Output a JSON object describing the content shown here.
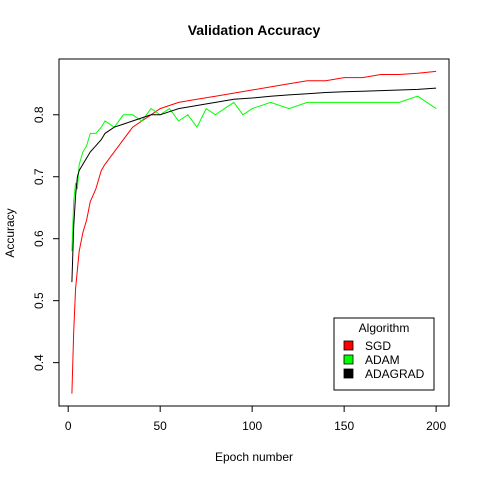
{
  "chart_data": {
    "type": "line",
    "title": "Validation Accuracy",
    "xlabel": "Epoch number",
    "ylabel": "Accuracy",
    "xlim": [
      -5,
      207
    ],
    "ylim": [
      0.33,
      0.89
    ],
    "xticks": [
      0,
      50,
      100,
      150,
      200
    ],
    "yticks": [
      0.4,
      0.5,
      0.6,
      0.7,
      0.8
    ],
    "legend": {
      "title": "Algorithm",
      "position": "bottom-right"
    },
    "series": [
      {
        "name": "SGD",
        "color": "#ff0000",
        "x": [
          2,
          3,
          4,
          5,
          6,
          8,
          10,
          12,
          15,
          18,
          20,
          25,
          30,
          35,
          40,
          45,
          50,
          55,
          60,
          70,
          80,
          90,
          100,
          110,
          120,
          130,
          140,
          150,
          160,
          170,
          180,
          190,
          200
        ],
        "y": [
          0.35,
          0.45,
          0.52,
          0.55,
          0.58,
          0.61,
          0.63,
          0.66,
          0.68,
          0.71,
          0.72,
          0.74,
          0.76,
          0.78,
          0.79,
          0.8,
          0.81,
          0.815,
          0.82,
          0.825,
          0.83,
          0.835,
          0.84,
          0.845,
          0.85,
          0.855,
          0.855,
          0.86,
          0.86,
          0.865,
          0.865,
          0.867,
          0.87
        ]
      },
      {
        "name": "ADAM",
        "color": "#00ff00",
        "x": [
          2,
          3,
          4,
          5,
          6,
          7,
          8,
          10,
          12,
          15,
          18,
          20,
          25,
          30,
          35,
          40,
          45,
          50,
          55,
          60,
          65,
          70,
          75,
          80,
          85,
          90,
          95,
          100,
          110,
          120,
          130,
          140,
          150,
          160,
          170,
          180,
          190,
          200
        ],
        "y": [
          0.58,
          0.66,
          0.69,
          0.68,
          0.72,
          0.73,
          0.74,
          0.75,
          0.77,
          0.77,
          0.78,
          0.79,
          0.78,
          0.8,
          0.8,
          0.79,
          0.81,
          0.8,
          0.81,
          0.79,
          0.8,
          0.78,
          0.81,
          0.8,
          0.81,
          0.82,
          0.8,
          0.81,
          0.82,
          0.81,
          0.82,
          0.82,
          0.82,
          0.82,
          0.82,
          0.82,
          0.83,
          0.81
        ]
      },
      {
        "name": "ADAGRAD",
        "color": "#000000",
        "x": [
          2,
          3,
          4,
          5,
          6,
          8,
          10,
          12,
          15,
          18,
          20,
          25,
          30,
          35,
          40,
          45,
          50,
          55,
          60,
          70,
          80,
          90,
          100,
          110,
          120,
          130,
          140,
          150,
          160,
          170,
          180,
          190,
          200
        ],
        "y": [
          0.53,
          0.62,
          0.67,
          0.7,
          0.71,
          0.72,
          0.73,
          0.74,
          0.75,
          0.76,
          0.77,
          0.78,
          0.785,
          0.79,
          0.795,
          0.8,
          0.8,
          0.805,
          0.81,
          0.815,
          0.82,
          0.825,
          0.827,
          0.83,
          0.832,
          0.834,
          0.836,
          0.837,
          0.838,
          0.839,
          0.84,
          0.841,
          0.843
        ]
      }
    ]
  }
}
